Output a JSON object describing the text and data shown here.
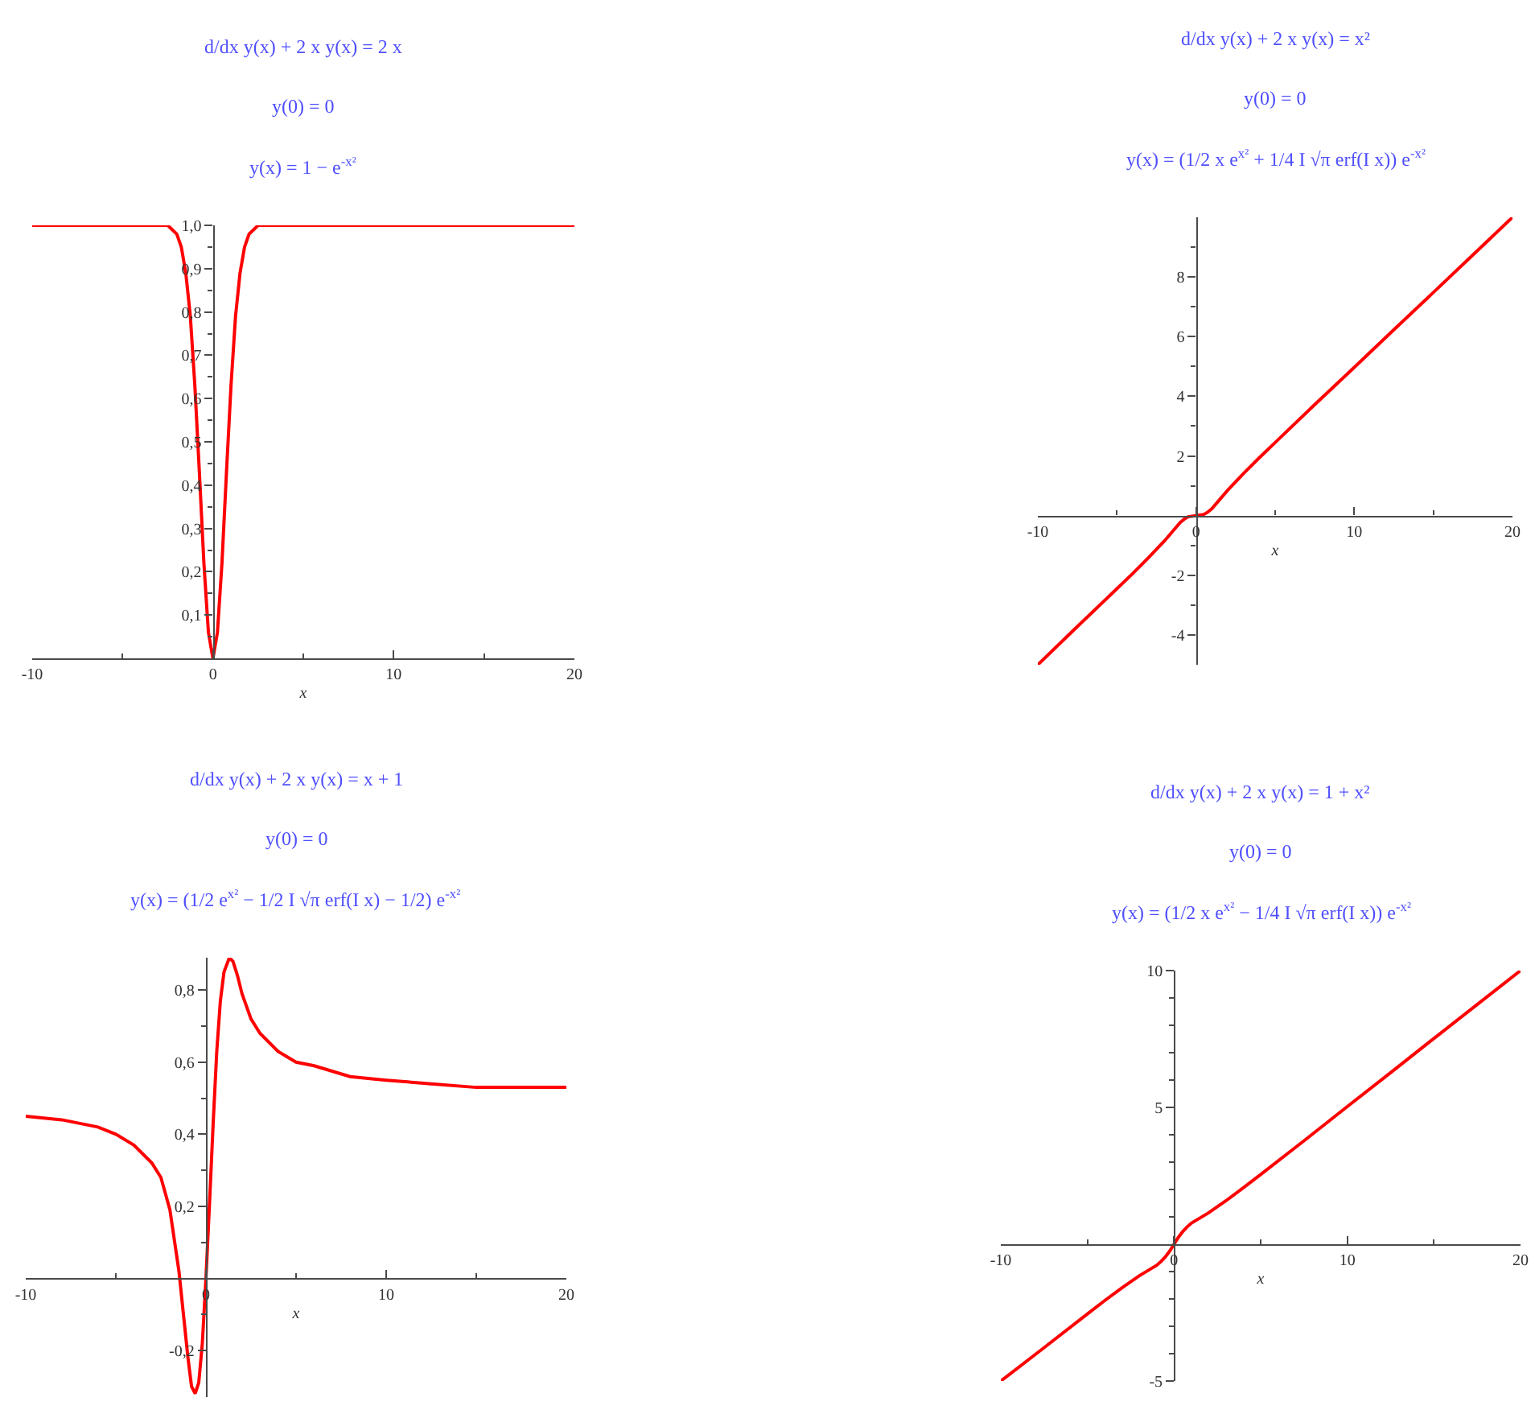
{
  "chart_data": [
    {
      "type": "line",
      "title": "d/dx y(x) + 2 x y(x) = 2 x",
      "subtitle": "y(0) = 0\ny(x) = 1 − e$^{-x²}$",
      "xlabel": "x",
      "x": [
        -10,
        -5,
        -3,
        -2.5,
        -2,
        -1.75,
        -1.5,
        -1.25,
        -1,
        -0.75,
        -0.5,
        -0.25,
        0,
        0.25,
        0.5,
        0.75,
        1,
        1.25,
        1.5,
        1.75,
        2,
        2.5,
        3,
        5,
        10,
        15,
        20
      ],
      "series": [
        {
          "color": "#ff0000",
          "values": [
            1,
            1,
            1,
            1,
            0.98,
            0.95,
            0.89,
            0.79,
            0.63,
            0.43,
            0.22,
            0.06,
            0,
            0.06,
            0.22,
            0.43,
            0.63,
            0.79,
            0.89,
            0.95,
            0.98,
            1,
            1,
            1,
            1,
            1,
            1
          ]
        }
      ],
      "xlim": [
        -10,
        20
      ],
      "ylim": [
        0,
        1
      ],
      "xticks": [
        -10,
        {
          "value": -5,
          "label": null
        },
        0,
        {
          "value": 5,
          "label": null
        },
        10,
        {
          "value": 15,
          "label": null
        },
        20
      ],
      "yticks": [
        {
          "value": 0.05,
          "label": null
        },
        {
          "value": 0.1,
          "label": "0,1"
        },
        {
          "value": 0.15,
          "label": null
        },
        {
          "value": 0.2,
          "label": "0,2"
        },
        {
          "value": 0.25,
          "label": null
        },
        {
          "value": 0.3,
          "label": "0,3"
        },
        {
          "value": 0.35,
          "label": null
        },
        {
          "value": 0.4,
          "label": "0,4"
        },
        {
          "value": 0.45,
          "label": null
        },
        {
          "value": 0.5,
          "label": "0,5"
        },
        {
          "value": 0.55,
          "label": null
        },
        {
          "value": 0.6,
          "label": "0,6"
        },
        {
          "value": 0.65,
          "label": null
        },
        {
          "value": 0.7,
          "label": "0,7"
        },
        {
          "value": 0.75,
          "label": null
        },
        {
          "value": 0.8,
          "label": "0,8"
        },
        {
          "value": 0.85,
          "label": null
        },
        {
          "value": 0.9,
          "label": "0,9"
        },
        {
          "value": 0.95,
          "label": null
        },
        {
          "value": 1,
          "label": "1,0"
        }
      ]
    },
    {
      "type": "line",
      "title": "d/dx y(x) + 2 x y(x) = x²",
      "subtitle": "y(0) = 0\ny(x) = (1/2 x e$^{x²}$ + 1/4 I √π erf(I x)) e$^{-x²}$",
      "xlabel": "x",
      "x": [
        -10,
        -7.5,
        -5,
        -4,
        -3,
        -2,
        -1.5,
        -1,
        -0.75,
        -0.5,
        0,
        0.5,
        0.75,
        1,
        1.5,
        2,
        3,
        4,
        5,
        7.5,
        10,
        12.5,
        15,
        17.5,
        20
      ],
      "series": [
        {
          "color": "#ff0000",
          "values": [
            -5,
            -3.72,
            -2.45,
            -1.94,
            -1.41,
            -0.85,
            -0.54,
            -0.23,
            -0.12,
            -0.04,
            0,
            0.04,
            0.12,
            0.23,
            0.54,
            0.85,
            1.41,
            1.94,
            2.45,
            3.72,
            4.97,
            6.23,
            7.48,
            8.74,
            10
          ]
        }
      ],
      "xlim": [
        -10,
        20
      ],
      "ylim": [
        -5,
        10
      ],
      "xticks": [
        -10,
        {
          "value": -5,
          "label": null
        },
        0,
        {
          "value": 5,
          "label": null
        },
        10,
        {
          "value": 15,
          "label": null
        },
        20
      ],
      "yticks": [
        -4,
        {
          "value": -3,
          "label": null
        },
        -2,
        {
          "value": -1,
          "label": null
        },
        {
          "value": 1,
          "label": null
        },
        2,
        {
          "value": 3,
          "label": null
        },
        4,
        {
          "value": 5,
          "label": null
        },
        6,
        {
          "value": 7,
          "label": null
        },
        8,
        {
          "value": 9,
          "label": null
        }
      ]
    },
    {
      "type": "line",
      "title": "d/dx y(x) + 2 x y(x) = x + 1",
      "subtitle": "y(0) = 0\ny(x) = (1/2 e$^{x²}$ − 1/2 I √π erf(I x) − 1/2) e$^{-x²}$",
      "xlabel": "x",
      "x": [
        -10,
        -8,
        -6,
        -5,
        -4,
        -3,
        -2.5,
        -2,
        -1.5,
        -1.25,
        -1,
        -0.8,
        -0.6,
        -0.4,
        -0.2,
        0,
        0.2,
        0.4,
        0.6,
        0.8,
        1,
        1.3,
        1.5,
        1.75,
        2,
        2.5,
        3,
        4,
        5,
        6,
        8,
        10,
        12.5,
        15,
        17.5,
        20
      ],
      "series": [
        {
          "color": "#ff0000",
          "values": [
            0.45,
            0.44,
            0.42,
            0.4,
            0.37,
            0.32,
            0.28,
            0.19,
            0.02,
            -0.1,
            -0.22,
            -0.3,
            -0.32,
            -0.29,
            -0.18,
            0,
            0.21,
            0.43,
            0.63,
            0.77,
            0.85,
            0.89,
            0.88,
            0.84,
            0.79,
            0.72,
            0.68,
            0.63,
            0.6,
            0.59,
            0.56,
            0.55,
            0.54,
            0.53,
            0.53,
            0.53
          ]
        }
      ],
      "xlim": [
        -10,
        20
      ],
      "ylim": [
        -0.33,
        0.89
      ],
      "xticks": [
        -10,
        {
          "value": -5,
          "label": null
        },
        0,
        {
          "value": 5,
          "label": null
        },
        10,
        {
          "value": 15,
          "label": null
        },
        20
      ],
      "yticks": [
        {
          "value": -0.2,
          "label": "-0,2"
        },
        {
          "value": -0.1,
          "label": null
        },
        {
          "value": 0.1,
          "label": null
        },
        {
          "value": 0.2,
          "label": "0,2"
        },
        {
          "value": 0.3,
          "label": null
        },
        {
          "value": 0.4,
          "label": "0,4"
        },
        {
          "value": 0.5,
          "label": null
        },
        {
          "value": 0.6,
          "label": "0,6"
        },
        {
          "value": 0.7,
          "label": null
        },
        {
          "value": 0.8,
          "label": "0,8"
        }
      ]
    },
    {
      "type": "line",
      "title": "d/dx y(x) + 2 x y(x) = 1 + x²",
      "subtitle": "y(0) = 0\ny(x) = (1/2 x e$^{x²}$ − 1/4 I √π erf(I x)) e$^{-x²}$",
      "xlabel": "x",
      "x": [
        -10,
        -7.5,
        -5,
        -4,
        -3,
        -2,
        -1.5,
        -1,
        -0.75,
        -0.5,
        -0.25,
        0,
        0.25,
        0.5,
        0.75,
        1,
        1.5,
        2,
        3,
        4,
        5,
        7.5,
        10,
        12.5,
        15,
        17.5,
        20
      ],
      "series": [
        {
          "color": "#ff0000",
          "values": [
            -5,
            -3.78,
            -2.55,
            -2.06,
            -1.59,
            -1.15,
            -0.96,
            -0.77,
            -0.63,
            -0.46,
            -0.25,
            0,
            0.25,
            0.46,
            0.63,
            0.77,
            0.96,
            1.15,
            1.59,
            2.06,
            2.55,
            3.78,
            5.03,
            6.27,
            7.52,
            8.76,
            10
          ]
        }
      ],
      "xlim": [
        -10,
        20
      ],
      "ylim": [
        -5,
        10
      ],
      "xticks": [
        -10,
        {
          "value": -5,
          "label": null
        },
        0,
        {
          "value": 5,
          "label": null
        },
        10,
        {
          "value": 15,
          "label": null
        },
        20
      ],
      "yticks": [
        -5,
        {
          "value": -4,
          "label": null
        },
        {
          "value": -3,
          "label": null
        },
        {
          "value": -2,
          "label": null
        },
        {
          "value": -1,
          "label": null
        },
        {
          "value": 1,
          "label": null
        },
        {
          "value": 2,
          "label": null
        },
        {
          "value": 3,
          "label": null
        },
        {
          "value": 4,
          "label": null
        },
        5,
        {
          "value": 6,
          "label": null
        },
        {
          "value": 7,
          "label": null
        },
        {
          "value": 8,
          "label": null
        },
        {
          "value": 9,
          "label": null
        },
        10
      ]
    }
  ]
}
